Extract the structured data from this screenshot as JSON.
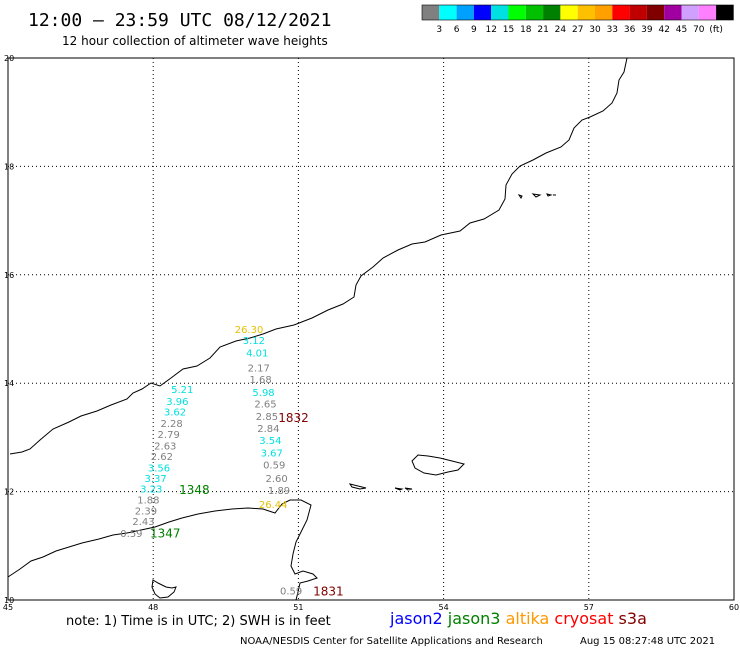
{
  "header": {
    "title": "12:00 – 23:59 UTC 08/12/2021",
    "subtitle": "12 hour collection of altimeter wave heights"
  },
  "scale": {
    "colors": [
      "#808080",
      "#00ffff",
      "#00a0ff",
      "#0000ff",
      "#00e0e0",
      "#00ff00",
      "#00c000",
      "#008000",
      "#ffff00",
      "#ffc000",
      "#ffa000",
      "#ff0000",
      "#c00000",
      "#800000",
      "#a000a0",
      "#d0a0ff",
      "#ff80ff",
      "#000000"
    ],
    "labels": [
      "3",
      "6",
      "9",
      "12",
      "15",
      "18",
      "21",
      "24",
      "27",
      "30",
      "33",
      "36",
      "39",
      "42",
      "45",
      "70",
      "(ft)"
    ]
  },
  "axes": {
    "lat_labels": [
      {
        "value": 20,
        "label": "20"
      },
      {
        "value": 18,
        "label": "18"
      },
      {
        "value": 16,
        "label": "16"
      },
      {
        "value": 14,
        "label": "14"
      },
      {
        "value": 12,
        "label": "12"
      },
      {
        "value": 10,
        "label": "10"
      }
    ],
    "lon_labels": [
      {
        "value": 45,
        "label": "45"
      },
      {
        "value": 48,
        "label": "48"
      },
      {
        "value": 51,
        "label": "51"
      },
      {
        "value": 54,
        "label": "54"
      },
      {
        "value": 57,
        "label": "57"
      },
      {
        "value": 60,
        "label": "60"
      }
    ],
    "lat_range": [
      10,
      20
    ],
    "lon_range": [
      45,
      60
    ]
  },
  "observations": [
    {
      "lon": 49.98,
      "lat": 14.93,
      "text": "26.30",
      "color": "#e8c000"
    },
    {
      "lon": 50.08,
      "lat": 14.72,
      "text": "3.12",
      "color": "#00e0e0"
    },
    {
      "lon": 50.15,
      "lat": 14.49,
      "text": "4.01",
      "color": "#00e0e0"
    },
    {
      "lon": 50.18,
      "lat": 14.22,
      "text": "2.17",
      "color": "#808080"
    },
    {
      "lon": 50.22,
      "lat": 14.0,
      "text": "1.68",
      "color": "#808080"
    },
    {
      "lon": 48.6,
      "lat": 13.82,
      "text": "5.21",
      "color": "#00e0e0"
    },
    {
      "lon": 50.28,
      "lat": 13.76,
      "text": "5.98",
      "color": "#00e0e0"
    },
    {
      "lon": 48.5,
      "lat": 13.6,
      "text": "3.96",
      "color": "#00e0e0"
    },
    {
      "lon": 50.32,
      "lat": 13.55,
      "text": "2.65",
      "color": "#808080"
    },
    {
      "lon": 48.45,
      "lat": 13.4,
      "text": "3.62",
      "color": "#00e0e0"
    },
    {
      "lon": 50.35,
      "lat": 13.32,
      "text": "2.85",
      "color": "#808080"
    },
    {
      "lon": 48.38,
      "lat": 13.19,
      "text": "2.28",
      "color": "#808080"
    },
    {
      "lon": 50.38,
      "lat": 13.1,
      "text": "2.84",
      "color": "#808080"
    },
    {
      "lon": 48.32,
      "lat": 12.99,
      "text": "2.79",
      "color": "#808080"
    },
    {
      "lon": 50.42,
      "lat": 12.88,
      "text": "3.54",
      "color": "#00e0e0"
    },
    {
      "lon": 48.25,
      "lat": 12.78,
      "text": "2.63",
      "color": "#808080"
    },
    {
      "lon": 50.45,
      "lat": 12.65,
      "text": "3.67",
      "color": "#00e0e0"
    },
    {
      "lon": 48.18,
      "lat": 12.58,
      "text": "2.62",
      "color": "#808080"
    },
    {
      "lon": 48.12,
      "lat": 12.37,
      "text": "3.56",
      "color": "#00e0e0"
    },
    {
      "lon": 50.5,
      "lat": 12.43,
      "text": "0.59",
      "color": "#808080"
    },
    {
      "lon": 48.05,
      "lat": 12.18,
      "text": "3.37",
      "color": "#00e0e0"
    },
    {
      "lon": 50.55,
      "lat": 12.18,
      "text": "2.60",
      "color": "#808080"
    },
    {
      "lon": 47.96,
      "lat": 11.98,
      "text": "3.23",
      "color": "#00e0e0"
    },
    {
      "lon": 50.6,
      "lat": 11.96,
      "text": "1.89",
      "color": "#808080"
    },
    {
      "lon": 47.9,
      "lat": 11.78,
      "text": "1.88",
      "color": "#808080"
    },
    {
      "lon": 47.85,
      "lat": 11.58,
      "text": "2.39",
      "color": "#808080"
    },
    {
      "lon": 50.48,
      "lat": 11.7,
      "text": "26.44",
      "color": "#e8c000"
    },
    {
      "lon": 47.8,
      "lat": 11.38,
      "text": "2.43",
      "color": "#808080"
    },
    {
      "lon": 47.55,
      "lat": 11.16,
      "text": "0.59",
      "color": "#808080"
    },
    {
      "lon": 50.85,
      "lat": 10.1,
      "text": "0.59",
      "color": "#808080"
    }
  ],
  "pass_times": [
    {
      "lon": 48.85,
      "lat": 11.96,
      "text": "1348",
      "color": "#008000"
    },
    {
      "lon": 48.25,
      "lat": 11.15,
      "text": "1347",
      "color": "#008000"
    },
    {
      "lon": 50.9,
      "lat": 13.28,
      "text": "1832",
      "color": "#800000"
    },
    {
      "lon": 51.62,
      "lat": 10.08,
      "text": "1831",
      "color": "#800000"
    }
  ],
  "footer": {
    "note": "note:  1) Time is in UTC;  2) SWH is in feet",
    "satellites": [
      {
        "name": "jason2",
        "color": "#0000ff"
      },
      {
        "name": "jason3",
        "color": "#008000"
      },
      {
        "name": "altika",
        "color": "#ff9900"
      },
      {
        "name": "cryosat",
        "color": "#ff0000"
      },
      {
        "name": "s3a",
        "color": "#800000"
      }
    ],
    "credit": "NOAA/NESDIS Center for Satellite Applications and Research",
    "timestamp": "Aug 15 08:27:48 UTC 2021"
  }
}
